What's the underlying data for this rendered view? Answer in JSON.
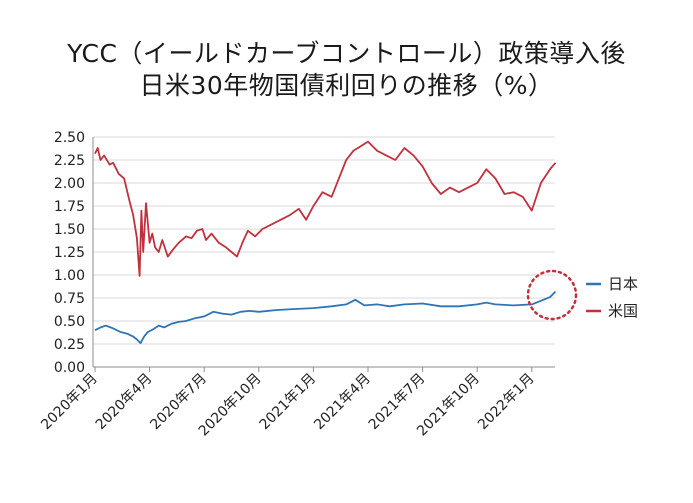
{
  "chart_data": {
    "type": "line",
    "title_lines": [
      "YCC（イールドカーブコントロール）政策導入後",
      "日米30年物国債利回りの推移（%）"
    ],
    "xlabel": "",
    "ylabel": "",
    "x_tick_labels": [
      "2020年1月",
      "2020年4月",
      "2020年7月",
      "2020年10月",
      "2021年1月",
      "2021年4月",
      "2021年7月",
      "2021年10月",
      "2022年1月"
    ],
    "y_tick_labels": [
      "0.00",
      "0.25",
      "0.50",
      "0.75",
      "1.00",
      "1.25",
      "1.50",
      "1.75",
      "2.00",
      "2.25",
      "2.50"
    ],
    "ylim": [
      0,
      2.5
    ],
    "x_range_months": [
      0,
      25.4
    ],
    "grid": "horizontal",
    "legend_position": "right",
    "annotation": "dotted-red-circle-around-latest-values",
    "series": [
      {
        "name": "日本",
        "color": "#2e75b6",
        "x": [
          0,
          0.3,
          0.6,
          1.0,
          1.4,
          1.8,
          2.1,
          2.3,
          2.5,
          2.7,
          2.9,
          3.2,
          3.5,
          3.8,
          4.2,
          4.6,
          5.0,
          5.5,
          6.0,
          6.5,
          7.0,
          7.5,
          8.0,
          8.5,
          9.0,
          10.0,
          11.0,
          12.0,
          13.0,
          13.8,
          14.3,
          14.8,
          15.5,
          16.2,
          17.0,
          18.0,
          19.0,
          20.0,
          21.0,
          21.5,
          22.0,
          23.0,
          24.0,
          24.5,
          25.0,
          25.3
        ],
        "values": [
          0.4,
          0.43,
          0.45,
          0.42,
          0.38,
          0.36,
          0.33,
          0.3,
          0.26,
          0.33,
          0.38,
          0.41,
          0.45,
          0.43,
          0.47,
          0.49,
          0.5,
          0.53,
          0.55,
          0.6,
          0.58,
          0.57,
          0.6,
          0.61,
          0.6,
          0.62,
          0.63,
          0.64,
          0.66,
          0.68,
          0.73,
          0.67,
          0.68,
          0.66,
          0.68,
          0.69,
          0.66,
          0.66,
          0.68,
          0.7,
          0.68,
          0.67,
          0.68,
          0.72,
          0.76,
          0.82
        ]
      },
      {
        "name": "米国",
        "color": "#c0313d",
        "x": [
          0,
          0.15,
          0.3,
          0.5,
          0.8,
          1.0,
          1.3,
          1.6,
          1.9,
          2.1,
          2.3,
          2.45,
          2.55,
          2.65,
          2.8,
          3.0,
          3.15,
          3.3,
          3.5,
          3.7,
          4.0,
          4.3,
          4.6,
          5.0,
          5.3,
          5.6,
          5.9,
          6.1,
          6.4,
          6.8,
          7.2,
          7.5,
          7.8,
          8.1,
          8.4,
          8.8,
          9.2,
          9.7,
          10.2,
          10.7,
          11.2,
          11.6,
          12.0,
          12.5,
          13.0,
          13.4,
          13.8,
          14.2,
          14.6,
          15.0,
          15.5,
          16.0,
          16.5,
          17.0,
          17.5,
          18.0,
          18.5,
          19.0,
          19.5,
          20.0,
          20.5,
          21.0,
          21.5,
          22.0,
          22.5,
          23.0,
          23.5,
          24.0,
          24.5,
          25.0,
          25.3
        ],
        "values": [
          2.32,
          2.38,
          2.25,
          2.3,
          2.2,
          2.22,
          2.1,
          2.05,
          1.8,
          1.65,
          1.4,
          0.99,
          1.7,
          1.25,
          1.78,
          1.35,
          1.45,
          1.3,
          1.25,
          1.38,
          1.2,
          1.28,
          1.35,
          1.42,
          1.4,
          1.48,
          1.5,
          1.38,
          1.45,
          1.35,
          1.3,
          1.25,
          1.2,
          1.35,
          1.48,
          1.42,
          1.5,
          1.55,
          1.6,
          1.65,
          1.72,
          1.6,
          1.75,
          1.9,
          1.85,
          2.05,
          2.25,
          2.35,
          2.4,
          2.45,
          2.35,
          2.3,
          2.25,
          2.38,
          2.3,
          2.18,
          2.0,
          1.88,
          1.95,
          1.9,
          1.95,
          2.0,
          2.15,
          2.05,
          1.88,
          1.9,
          1.85,
          1.7,
          2.0,
          2.15,
          2.22
        ]
      }
    ]
  }
}
